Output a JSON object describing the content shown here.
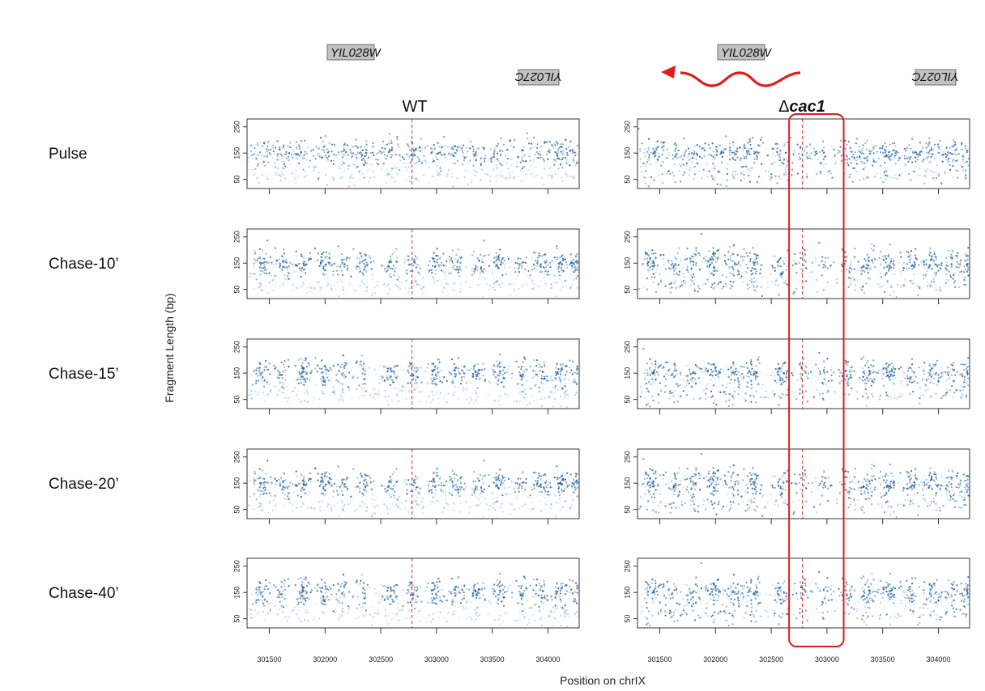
{
  "chart_data": {
    "type": "scatter",
    "conditions": [
      {
        "key": "wt",
        "label_prefix": "",
        "label_italic": "",
        "label_plain": "WT"
      },
      {
        "key": "cac1",
        "label_prefix": "Δ",
        "label_italic": "cac1",
        "label_plain": ""
      }
    ],
    "rows": [
      "Pulse",
      "Chase-10’",
      "Chase-15’",
      "Chase-20’",
      "Chase-40’"
    ],
    "xlabel": "Position on chrIX",
    "ylabel": "Fragment Length (bp)",
    "xlim": [
      301300,
      304280
    ],
    "ylim": [
      15,
      280
    ],
    "x_ticks": [
      301500,
      302000,
      302500,
      303000,
      303500,
      304000
    ],
    "y_ticks": [
      50,
      150,
      250
    ],
    "reference_line_x": 302780,
    "highlight_region_x": [
      302660,
      303150
    ],
    "genes": {
      "upper": "YIL028W",
      "lower": "YIL027C"
    },
    "colors": {
      "points": "#1f5f9e",
      "points_light": "#8cbfe0",
      "reference_line": "#e0302a",
      "highlight_box": "#e01d1d",
      "arrow": "#e01d1d",
      "gene_box": "#c2c2c2"
    },
    "nucleosome_centers_x": [
      301430,
      301620,
      301800,
      301990,
      302160,
      302340,
      302580,
      302790,
      302990,
      303180,
      303380,
      303560,
      303760,
      303940,
      304110,
      304260
    ]
  }
}
